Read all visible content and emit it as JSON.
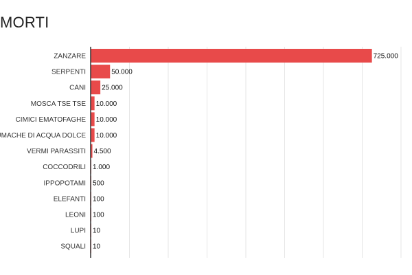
{
  "chart_data": {
    "type": "bar",
    "orientation": "horizontal",
    "title": "MORTI",
    "categories": [
      "ZANZARE",
      "SERPENTI",
      "CANI",
      "MOSCA TSE TSE",
      "CIMICI EMATOFAGHE",
      "LUMACHE DI ACQUA DOLCE",
      "VERMI PARASSITI",
      "COCCODRILI",
      "IPPOPOTAMI",
      "ELEFANTI",
      "LEONI",
      "LUPI",
      "SQUALI"
    ],
    "values": [
      725000,
      50000,
      25000,
      10000,
      10000,
      10000,
      4500,
      1000,
      500,
      100,
      100,
      10,
      10
    ],
    "value_labels": [
      "725.000",
      "50.000",
      "25.000",
      "10.000",
      "10.000",
      "10.000",
      "4.500",
      "1.000",
      "500",
      "100",
      "100",
      "10",
      "10"
    ],
    "xlim": [
      0,
      800000
    ],
    "grid": true,
    "bar_color": "#e84a4a"
  }
}
